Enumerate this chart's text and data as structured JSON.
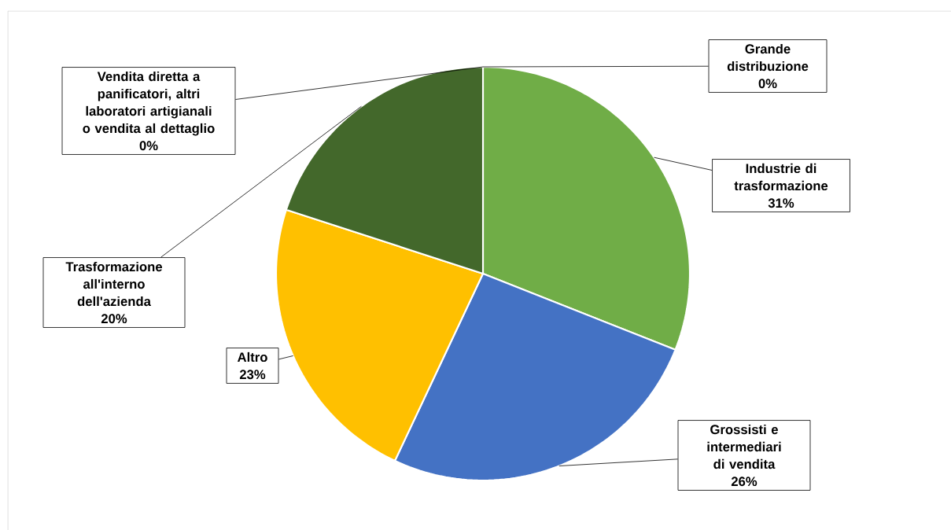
{
  "chart_data": {
    "type": "pie",
    "categories": [
      "Grande distribuzione",
      "Industrie di trasformazione",
      "Grossisti e intermediari di vendita",
      "Altro",
      "Trasformazione all'interno dell'azienda",
      "Vendita diretta a panificatori, altri laboratori artigianali o vendita al dettaglio"
    ],
    "values": [
      0,
      31,
      26,
      23,
      20,
      0
    ],
    "value_labels": [
      "0%",
      "31%",
      "26%",
      "23%",
      "20%",
      "0%"
    ],
    "colors": [
      "#ed7d31",
      "#70ad47",
      "#4472c4",
      "#ffc000",
      "#43682b",
      "#a5a5a5"
    ]
  }
}
